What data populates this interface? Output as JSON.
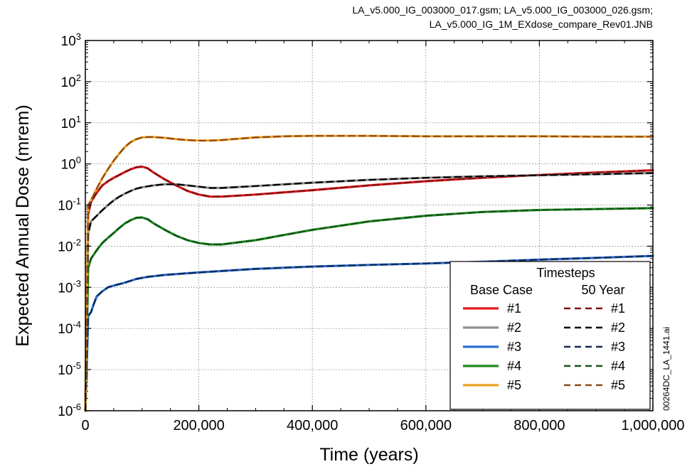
{
  "header": {
    "line1": "LA_v5.000_IG_003000_017.gsm; LA_v5.000_IG_003000_026.gsm;",
    "line2": "LA_v5.000_IG_1M_EXdose_compare_Rev01.JNB"
  },
  "side_label": "00264DC_LA_1441.ai",
  "chart_data": {
    "type": "line",
    "title": "",
    "xlabel": "Time (years)",
    "ylabel": "Expected Annual Dose (mrem)",
    "xlim": [
      0,
      1000000
    ],
    "ylim": [
      1e-06,
      1000
    ],
    "yscale": "log",
    "grid": true,
    "x_ticks": [
      0,
      200000,
      400000,
      600000,
      800000,
      1000000
    ],
    "x_tick_labels": [
      "0",
      "200,000",
      "400,000",
      "600,000",
      "800,000",
      "1,000,000"
    ],
    "y_tick_exponents": [
      -6,
      -5,
      -4,
      -3,
      -2,
      -1,
      0,
      1,
      2,
      3
    ],
    "y_tick_base": "10",
    "legend": {
      "position": "bottom-right",
      "title": "Timesteps",
      "col1_header": "Base Case",
      "col2_header": "50 Year"
    },
    "series": [
      {
        "name": "#1",
        "group": "Base Case",
        "color": "#e8141b",
        "dash": "solid",
        "x": [
          0,
          5000,
          10000,
          20000,
          30000,
          40000,
          50000,
          60000,
          70000,
          80000,
          90000,
          100000,
          110000,
          120000,
          140000,
          160000,
          180000,
          200000,
          220000,
          240000,
          300000,
          400000,
          500000,
          600000,
          700000,
          800000,
          900000,
          1000000
        ],
        "y": [
          1e-06,
          0.06,
          0.12,
          0.2,
          0.3,
          0.38,
          0.46,
          0.54,
          0.64,
          0.74,
          0.83,
          0.86,
          0.78,
          0.62,
          0.42,
          0.3,
          0.22,
          0.18,
          0.16,
          0.16,
          0.18,
          0.23,
          0.3,
          0.38,
          0.46,
          0.54,
          0.62,
          0.7
        ]
      },
      {
        "name": "#2",
        "group": "Base Case",
        "color": "#8f8f8f",
        "dash": "solid",
        "x": [
          0,
          5000,
          10000,
          20000,
          30000,
          40000,
          50000,
          60000,
          70000,
          80000,
          90000,
          100000,
          120000,
          140000,
          160000,
          180000,
          200000,
          220000,
          240000,
          300000,
          400000,
          500000,
          600000,
          700000,
          800000,
          900000,
          1000000
        ],
        "y": [
          1e-06,
          0.02,
          0.04,
          0.055,
          0.075,
          0.1,
          0.13,
          0.16,
          0.19,
          0.22,
          0.25,
          0.27,
          0.3,
          0.32,
          0.32,
          0.3,
          0.28,
          0.26,
          0.26,
          0.29,
          0.35,
          0.41,
          0.46,
          0.5,
          0.53,
          0.56,
          0.6
        ]
      },
      {
        "name": "#3",
        "group": "Base Case",
        "color": "#2a6fd6",
        "dash": "solid",
        "x": [
          0,
          5000,
          10000,
          15000,
          20000,
          30000,
          40000,
          50000,
          70000,
          90000,
          110000,
          140000,
          200000,
          300000,
          400000,
          500000,
          600000,
          700000,
          800000,
          900000,
          1000000
        ],
        "y": [
          1e-06,
          0.0002,
          0.00025,
          0.0004,
          0.0006,
          0.0008,
          0.001,
          0.0011,
          0.0013,
          0.0016,
          0.0018,
          0.002,
          0.0023,
          0.0028,
          0.0032,
          0.0035,
          0.0038,
          0.0042,
          0.0047,
          0.0052,
          0.0058
        ]
      },
      {
        "name": "#4",
        "group": "Base Case",
        "color": "#1d8a1d",
        "dash": "solid",
        "x": [
          0,
          5000,
          10000,
          20000,
          30000,
          40000,
          50000,
          60000,
          70000,
          80000,
          90000,
          100000,
          110000,
          120000,
          140000,
          160000,
          180000,
          200000,
          220000,
          240000,
          300000,
          400000,
          500000,
          600000,
          700000,
          800000,
          900000,
          1000000
        ],
        "y": [
          1e-06,
          0.003,
          0.005,
          0.008,
          0.012,
          0.016,
          0.021,
          0.028,
          0.036,
          0.043,
          0.049,
          0.05,
          0.045,
          0.036,
          0.025,
          0.018,
          0.014,
          0.012,
          0.011,
          0.011,
          0.014,
          0.025,
          0.04,
          0.055,
          0.068,
          0.076,
          0.08,
          0.084
        ]
      },
      {
        "name": "#5",
        "group": "Base Case",
        "color": "#f0a020",
        "dash": "solid",
        "x": [
          0,
          5000,
          10000,
          20000,
          30000,
          40000,
          50000,
          60000,
          70000,
          80000,
          90000,
          100000,
          110000,
          120000,
          140000,
          160000,
          180000,
          200000,
          220000,
          240000,
          260000,
          300000,
          350000,
          400000,
          500000,
          600000,
          700000,
          800000,
          900000,
          1000000
        ],
        "y": [
          1e-06,
          0.1,
          0.13,
          0.25,
          0.45,
          0.75,
          1.2,
          1.8,
          2.6,
          3.4,
          4.0,
          4.4,
          4.5,
          4.5,
          4.3,
          4.0,
          3.8,
          3.7,
          3.7,
          3.8,
          4.0,
          4.4,
          4.7,
          4.8,
          4.8,
          4.7,
          4.7,
          4.7,
          4.6,
          4.6
        ]
      },
      {
        "name": "#1",
        "group": "50 Year",
        "color": "#7a1414",
        "dash": "dashed",
        "x": [
          0,
          5000,
          10000,
          20000,
          30000,
          40000,
          50000,
          60000,
          70000,
          80000,
          90000,
          100000,
          110000,
          120000,
          140000,
          160000,
          180000,
          200000,
          220000,
          240000,
          300000,
          400000,
          500000,
          600000,
          700000,
          800000,
          900000,
          1000000
        ],
        "y": [
          1e-06,
          0.06,
          0.12,
          0.2,
          0.3,
          0.38,
          0.46,
          0.54,
          0.64,
          0.74,
          0.83,
          0.86,
          0.78,
          0.62,
          0.42,
          0.3,
          0.22,
          0.18,
          0.16,
          0.16,
          0.18,
          0.23,
          0.3,
          0.38,
          0.46,
          0.54,
          0.62,
          0.7
        ]
      },
      {
        "name": "#2",
        "group": "50 Year",
        "color": "#000000",
        "dash": "dashed",
        "x": [
          0,
          5000,
          10000,
          20000,
          30000,
          40000,
          50000,
          60000,
          70000,
          80000,
          90000,
          100000,
          120000,
          140000,
          160000,
          180000,
          200000,
          220000,
          240000,
          300000,
          400000,
          500000,
          600000,
          700000,
          800000,
          900000,
          1000000
        ],
        "y": [
          1e-06,
          0.02,
          0.04,
          0.055,
          0.075,
          0.1,
          0.13,
          0.16,
          0.19,
          0.22,
          0.25,
          0.27,
          0.3,
          0.32,
          0.32,
          0.3,
          0.28,
          0.26,
          0.26,
          0.29,
          0.35,
          0.41,
          0.46,
          0.5,
          0.53,
          0.56,
          0.6
        ]
      },
      {
        "name": "#3",
        "group": "50 Year",
        "color": "#13294b",
        "dash": "dashed",
        "x": [
          0,
          5000,
          10000,
          15000,
          20000,
          30000,
          40000,
          50000,
          70000,
          90000,
          110000,
          140000,
          200000,
          300000,
          400000,
          500000,
          600000,
          700000,
          800000,
          900000,
          1000000
        ],
        "y": [
          1e-06,
          0.0002,
          0.00025,
          0.0004,
          0.0006,
          0.0008,
          0.001,
          0.0011,
          0.0013,
          0.0016,
          0.0018,
          0.002,
          0.0023,
          0.0028,
          0.0032,
          0.0035,
          0.0038,
          0.0042,
          0.0047,
          0.0052,
          0.0058
        ]
      },
      {
        "name": "#4",
        "group": "50 Year",
        "color": "#15521a",
        "dash": "dashed",
        "x": [
          0,
          5000,
          10000,
          20000,
          30000,
          40000,
          50000,
          60000,
          70000,
          80000,
          90000,
          100000,
          110000,
          120000,
          140000,
          160000,
          180000,
          200000,
          220000,
          240000,
          300000,
          400000,
          500000,
          600000,
          700000,
          800000,
          900000,
          1000000
        ],
        "y": [
          1e-06,
          0.003,
          0.005,
          0.008,
          0.012,
          0.016,
          0.021,
          0.028,
          0.036,
          0.043,
          0.049,
          0.05,
          0.045,
          0.036,
          0.025,
          0.018,
          0.014,
          0.012,
          0.011,
          0.011,
          0.014,
          0.025,
          0.04,
          0.055,
          0.068,
          0.076,
          0.08,
          0.084
        ]
      },
      {
        "name": "#5",
        "group": "50 Year",
        "color": "#8a4a1a",
        "dash": "dashed",
        "x": [
          0,
          5000,
          10000,
          20000,
          30000,
          40000,
          50000,
          60000,
          70000,
          80000,
          90000,
          100000,
          110000,
          120000,
          140000,
          160000,
          180000,
          200000,
          220000,
          240000,
          260000,
          300000,
          350000,
          400000,
          500000,
          600000,
          700000,
          800000,
          900000,
          1000000
        ],
        "y": [
          1e-06,
          0.1,
          0.13,
          0.25,
          0.45,
          0.75,
          1.2,
          1.8,
          2.6,
          3.4,
          4.0,
          4.4,
          4.5,
          4.5,
          4.3,
          4.0,
          3.8,
          3.7,
          3.7,
          3.8,
          4.0,
          4.4,
          4.7,
          4.8,
          4.8,
          4.7,
          4.7,
          4.7,
          4.6,
          4.6
        ]
      }
    ]
  }
}
